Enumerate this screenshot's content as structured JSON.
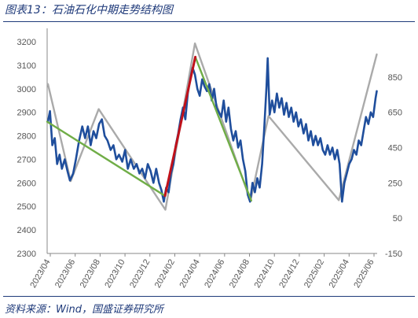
{
  "figure_title": "图表13：石油石化中期走势结构图",
  "source_note": "资料来源：Wind，国盛证券研究所",
  "chart_data": {
    "type": "line",
    "x_tick_labels": [
      "2023/04",
      "2023/06",
      "2023/08",
      "2023/10",
      "2023/12",
      "2024/02",
      "2024/04",
      "2024/06",
      "2024/08",
      "2024/10",
      "2024/12",
      "2025/02",
      "2025/04",
      "2025/06"
    ],
    "y_left": {
      "ticks": [
        2300,
        2400,
        2500,
        2600,
        2700,
        2800,
        2900,
        3000,
        3100,
        3200
      ],
      "range": [
        2300,
        3200
      ]
    },
    "y_right": {
      "ticks": [
        -150,
        50,
        250,
        450,
        650,
        850
      ],
      "range": [
        -150,
        1050
      ]
    },
    "x_range": [
      "2023-04-01",
      "2025-07-05"
    ],
    "grid": false,
    "colors": {
      "price": "#1f4e9c",
      "structure": "#aaaaaa",
      "rise": "#c0111a",
      "fall": "#70ad47",
      "title": "#1f3a7a"
    },
    "series": [
      {
        "axis": "left",
        "style": "price",
        "points": [
          [
            "2023-04-03",
            2860
          ],
          [
            "2023-04-08",
            2905
          ],
          [
            "2023-04-14",
            2760
          ],
          [
            "2023-04-20",
            2790
          ],
          [
            "2023-04-26",
            2680
          ],
          [
            "2023-05-02",
            2720
          ],
          [
            "2023-05-08",
            2660
          ],
          [
            "2023-05-15",
            2700
          ],
          [
            "2023-05-22",
            2650
          ],
          [
            "2023-05-28",
            2610
          ],
          [
            "2023-06-05",
            2640
          ],
          [
            "2023-06-12",
            2700
          ],
          [
            "2023-06-20",
            2780
          ],
          [
            "2023-06-28",
            2840
          ],
          [
            "2023-07-05",
            2790
          ],
          [
            "2023-07-12",
            2840
          ],
          [
            "2023-07-19",
            2760
          ],
          [
            "2023-07-26",
            2820
          ],
          [
            "2023-08-02",
            2790
          ],
          [
            "2023-08-09",
            2850
          ],
          [
            "2023-08-16",
            2870
          ],
          [
            "2023-08-23",
            2800
          ],
          [
            "2023-08-30",
            2780
          ],
          [
            "2023-09-07",
            2740
          ],
          [
            "2023-09-14",
            2760
          ],
          [
            "2023-09-21",
            2700
          ],
          [
            "2023-09-28",
            2720
          ],
          [
            "2023-10-06",
            2690
          ],
          [
            "2023-10-13",
            2740
          ],
          [
            "2023-10-20",
            2660
          ],
          [
            "2023-10-27",
            2700
          ],
          [
            "2023-11-04",
            2660
          ],
          [
            "2023-11-11",
            2680
          ],
          [
            "2023-11-18",
            2640
          ],
          [
            "2023-11-25",
            2660
          ],
          [
            "2023-12-02",
            2620
          ],
          [
            "2023-12-09",
            2680
          ],
          [
            "2023-12-16",
            2650
          ],
          [
            "2023-12-23",
            2600
          ],
          [
            "2023-12-30",
            2660
          ],
          [
            "2024-01-06",
            2600
          ],
          [
            "2024-01-12",
            2570
          ],
          [
            "2024-01-18",
            2520
          ],
          [
            "2024-01-24",
            2580
          ],
          [
            "2024-01-30",
            2560
          ],
          [
            "2024-02-05",
            2640
          ],
          [
            "2024-02-11",
            2680
          ],
          [
            "2024-02-17",
            2760
          ],
          [
            "2024-02-23",
            2810
          ],
          [
            "2024-02-29",
            2870
          ],
          [
            "2024-03-06",
            2920
          ],
          [
            "2024-03-12",
            2870
          ],
          [
            "2024-03-18",
            2980
          ],
          [
            "2024-03-24",
            3040
          ],
          [
            "2024-03-30",
            3090
          ],
          [
            "2024-04-05",
            3060
          ],
          [
            "2024-04-11",
            3000
          ],
          [
            "2024-04-17",
            2970
          ],
          [
            "2024-04-23",
            3040
          ],
          [
            "2024-04-29",
            3010
          ],
          [
            "2024-05-05",
            2990
          ],
          [
            "2024-05-11",
            3020
          ],
          [
            "2024-05-17",
            2950
          ],
          [
            "2024-05-23",
            3000
          ],
          [
            "2024-05-29",
            2920
          ],
          [
            "2024-06-04",
            2900
          ],
          [
            "2024-06-10",
            2880
          ],
          [
            "2024-06-16",
            2950
          ],
          [
            "2024-06-22",
            2860
          ],
          [
            "2024-06-28",
            2920
          ],
          [
            "2024-07-04",
            2830
          ],
          [
            "2024-07-10",
            2780
          ],
          [
            "2024-07-16",
            2820
          ],
          [
            "2024-07-22",
            2750
          ],
          [
            "2024-07-28",
            2780
          ],
          [
            "2024-08-03",
            2700
          ],
          [
            "2024-08-09",
            2650
          ],
          [
            "2024-08-15",
            2550
          ],
          [
            "2024-08-21",
            2520
          ],
          [
            "2024-08-27",
            2600
          ],
          [
            "2024-09-02",
            2560
          ],
          [
            "2024-09-08",
            2620
          ],
          [
            "2024-09-14",
            2580
          ],
          [
            "2024-09-20",
            2680
          ],
          [
            "2024-09-26",
            2850
          ],
          [
            "2024-10-01",
            3010
          ],
          [
            "2024-10-04",
            3130
          ],
          [
            "2024-10-09",
            2890
          ],
          [
            "2024-10-15",
            2950
          ],
          [
            "2024-10-21",
            2900
          ],
          [
            "2024-10-27",
            2980
          ],
          [
            "2024-11-02",
            2920
          ],
          [
            "2024-11-08",
            2960
          ],
          [
            "2024-11-14",
            2890
          ],
          [
            "2024-11-20",
            2940
          ],
          [
            "2024-11-26",
            2880
          ],
          [
            "2024-12-02",
            2920
          ],
          [
            "2024-12-08",
            2860
          ],
          [
            "2024-12-14",
            2900
          ],
          [
            "2024-12-20",
            2840
          ],
          [
            "2024-12-26",
            2870
          ],
          [
            "2025-01-02",
            2810
          ],
          [
            "2025-01-08",
            2850
          ],
          [
            "2025-01-14",
            2780
          ],
          [
            "2025-01-20",
            2820
          ],
          [
            "2025-01-26",
            2760
          ],
          [
            "2025-02-01",
            2800
          ],
          [
            "2025-02-07",
            2760
          ],
          [
            "2025-02-13",
            2790
          ],
          [
            "2025-02-19",
            2740
          ],
          [
            "2025-02-25",
            2720
          ],
          [
            "2025-03-03",
            2760
          ],
          [
            "2025-03-09",
            2720
          ],
          [
            "2025-03-15",
            2750
          ],
          [
            "2025-03-21",
            2700
          ],
          [
            "2025-03-27",
            2740
          ],
          [
            "2025-04-02",
            2680
          ],
          [
            "2025-04-08",
            2520
          ],
          [
            "2025-04-14",
            2600
          ],
          [
            "2025-04-20",
            2640
          ],
          [
            "2025-04-26",
            2680
          ],
          [
            "2025-05-02",
            2700
          ],
          [
            "2025-05-08",
            2740
          ],
          [
            "2025-05-14",
            2720
          ],
          [
            "2025-05-20",
            2780
          ],
          [
            "2025-05-26",
            2760
          ],
          [
            "2025-06-01",
            2820
          ],
          [
            "2025-06-07",
            2880
          ],
          [
            "2025-06-13",
            2850
          ],
          [
            "2025-06-19",
            2900
          ],
          [
            "2025-06-25",
            2880
          ],
          [
            "2025-07-01",
            2960
          ],
          [
            "2025-07-04",
            2990
          ]
        ]
      },
      {
        "axis": "right",
        "style": "structure",
        "points": [
          [
            "2023-04-03",
            810
          ],
          [
            "2023-05-30",
            260
          ],
          [
            "2023-08-08",
            668
          ],
          [
            "2024-01-22",
            98
          ],
          [
            "2024-04-05",
            1040
          ],
          [
            "2024-08-22",
            149
          ],
          [
            "2024-10-06",
            629
          ],
          [
            "2025-03-31",
            152
          ],
          [
            "2025-07-04",
            978
          ]
        ]
      },
      {
        "axis": "left",
        "style": "fall",
        "points": [
          [
            "2023-04-01",
            2860
          ],
          [
            "2024-01-21",
            2545
          ]
        ]
      },
      {
        "axis": "left",
        "style": "rise",
        "points": [
          [
            "2024-01-21",
            2545
          ],
          [
            "2024-04-06",
            3135
          ]
        ]
      },
      {
        "axis": "left",
        "style": "fall",
        "points": [
          [
            "2024-04-06",
            3135
          ],
          [
            "2024-08-24",
            2525
          ]
        ]
      }
    ]
  }
}
